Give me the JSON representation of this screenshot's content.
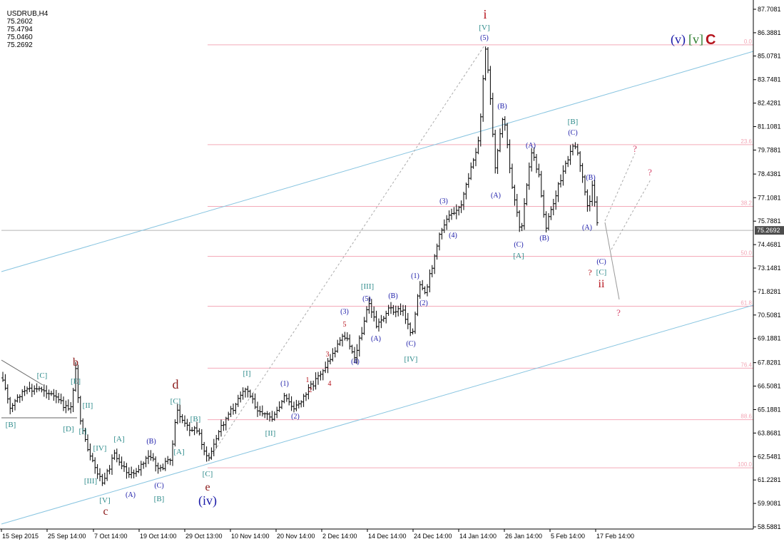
{
  "header": {
    "symbol": "USDRUB,H4",
    "open": "75.2602",
    "high": "75.4794",
    "low": "75.0460",
    "close": "75.2692"
  },
  "colors": {
    "candle": "#000000",
    "channel": "#87c4e0",
    "fib": "#f4aab9",
    "projection": "#aaaaaa",
    "red_label": "#b5121b",
    "blue_label": "#1a1aa8",
    "teal_label": "#2e8b8b",
    "dark_red_label": "#8b1a1a",
    "price_tag_bg": "#4d4d4d"
  },
  "chart_data": {
    "type": "candlestick",
    "y_axis": {
      "range": [
        58.5881,
        87.7081
      ],
      "ticks": [
        "87.7081",
        "86.3881",
        "85.0781",
        "83.7481",
        "82.4281",
        "81.1081",
        "79.7881",
        "78.4381",
        "77.1081",
        "75.7881",
        "74.4681",
        "73.1481",
        "71.8281",
        "70.5081",
        "69.1881",
        "67.8281",
        "66.5081",
        "65.1881",
        "63.8681",
        "62.5481",
        "61.2281",
        "59.9081",
        "58.5881"
      ]
    },
    "x_axis": {
      "labels": [
        "15 Sep 2015",
        "25 Sep 14:00",
        "7 Oct 14:00",
        "19 Oct 14:00",
        "29 Oct 13:00",
        "10 Nov 14:00",
        "20 Nov 14:00",
        "2 Dec 14:00",
        "14 Dec 14:00",
        "24 Dec 14:00",
        "14 Jan 14:00",
        "26 Jan 14:00",
        "5 Feb 14:00",
        "17 Feb 14:00"
      ]
    },
    "current_price": "75.2692",
    "fib_levels": [
      {
        "label": "0.0",
        "price": 85.71
      },
      {
        "label": "23.6",
        "price": 80.09
      },
      {
        "label": "38.2",
        "price": 76.62
      },
      {
        "label": "50.0",
        "price": 73.81
      },
      {
        "label": "61.8",
        "price": 71.0
      },
      {
        "label": "76.4",
        "price": 67.52
      },
      {
        "label": "88.6",
        "price": 64.62
      },
      {
        "label": "100.0",
        "price": 61.91
      }
    ],
    "wave_labels": [
      {
        "text": "b",
        "color": "dark_red"
      },
      {
        "text": "[C]",
        "color": "teal"
      },
      {
        "text": "[E]",
        "color": "teal"
      },
      {
        "text": "[B]",
        "color": "teal"
      },
      {
        "text": "[D]",
        "color": "teal"
      },
      {
        "text": "[I]",
        "color": "teal"
      },
      {
        "text": "[II]",
        "color": "teal"
      },
      {
        "text": "[IV]",
        "color": "teal"
      },
      {
        "text": "[III]",
        "color": "teal"
      },
      {
        "text": "[V]",
        "color": "teal"
      },
      {
        "text": "c",
        "color": "dark_red"
      },
      {
        "text": "[A]",
        "color": "teal"
      },
      {
        "text": "(B)",
        "color": "blue"
      },
      {
        "text": "(A)",
        "color": "blue"
      },
      {
        "text": "(C)",
        "color": "blue"
      },
      {
        "text": "[B]",
        "color": "teal"
      },
      {
        "text": "d",
        "color": "dark_red"
      },
      {
        "text": "[C]",
        "color": "teal"
      },
      {
        "text": "[B]",
        "color": "teal"
      },
      {
        "text": "[A]",
        "color": "teal"
      },
      {
        "text": "[C]",
        "color": "teal"
      },
      {
        "text": "e",
        "color": "dark_red"
      },
      {
        "text": "(iv)",
        "color": "blue"
      },
      {
        "text": "[I]",
        "color": "teal"
      },
      {
        "text": "[II]",
        "color": "teal"
      },
      {
        "text": "(1)",
        "color": "blue"
      },
      {
        "text": "(2)",
        "color": "blue"
      },
      {
        "text": "1",
        "color": "red"
      },
      {
        "text": "2",
        "color": "red"
      },
      {
        "text": "3",
        "color": "red"
      },
      {
        "text": "4",
        "color": "red"
      },
      {
        "text": "5",
        "color": "red"
      },
      {
        "text": "(3)",
        "color": "blue"
      },
      {
        "text": "(4)",
        "color": "blue"
      },
      {
        "text": "[III]",
        "color": "teal"
      },
      {
        "text": "(5)",
        "color": "blue"
      },
      {
        "text": "(A)",
        "color": "blue"
      },
      {
        "text": "(B)",
        "color": "blue"
      },
      {
        "text": "(C)",
        "color": "blue"
      },
      {
        "text": "[IV]",
        "color": "teal"
      },
      {
        "text": "(1)",
        "color": "blue"
      },
      {
        "text": "(2)",
        "color": "blue"
      },
      {
        "text": "(3)",
        "color": "blue"
      },
      {
        "text": "(4)",
        "color": "blue"
      },
      {
        "text": "i",
        "color": "red"
      },
      {
        "text": "[V]",
        "color": "teal"
      },
      {
        "text": "(5)",
        "color": "blue"
      },
      {
        "text": "(B)",
        "color": "blue"
      },
      {
        "text": "(A)",
        "color": "blue"
      },
      {
        "text": "(A)",
        "color": "blue"
      },
      {
        "text": "(C)",
        "color": "blue"
      },
      {
        "text": "[A]",
        "color": "teal"
      },
      {
        "text": "(B)",
        "color": "blue"
      },
      {
        "text": "[B]",
        "color": "teal"
      },
      {
        "text": "(C)",
        "color": "blue"
      },
      {
        "text": "(B)",
        "color": "blue"
      },
      {
        "text": "(A)",
        "color": "blue"
      },
      {
        "text": "(C)",
        "color": "blue"
      },
      {
        "text": "[C]",
        "color": "teal"
      },
      {
        "text": "?",
        "color": "red"
      },
      {
        "text": "ii",
        "color": "red"
      },
      {
        "text": "?",
        "color": "pink"
      },
      {
        "text": "?",
        "color": "pink"
      },
      {
        "text": "?",
        "color": "pink"
      }
    ],
    "corner_labels": {
      "a": "(v)",
      "b": "[v]",
      "c": "C"
    }
  }
}
